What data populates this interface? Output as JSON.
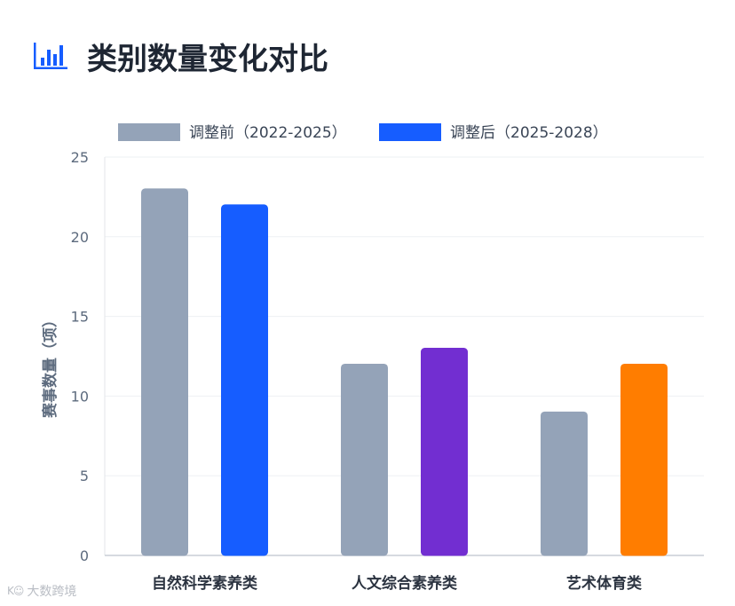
{
  "title": "类别数量变化对比",
  "icons": {
    "header": "bar-chart-icon"
  },
  "watermark": {
    "symbol": "K☺",
    "text": "大数跨境"
  },
  "chart_data": {
    "type": "bar",
    "title": "",
    "ylabel": "赛事数量（项）",
    "xlabel": "",
    "ylim": [
      0,
      25
    ],
    "yticks": [
      0,
      5,
      10,
      15,
      20,
      25
    ],
    "grid": true,
    "legend_position": "top",
    "categories": [
      "自然科学素养类",
      "人文综合素养类",
      "艺术体育类"
    ],
    "series": [
      {
        "name": "调整前（2022-2025）",
        "values": [
          23,
          12,
          9
        ],
        "color": "#94a3b8",
        "colors": [
          "#94a3b8",
          "#94a3b8",
          "#94a3b8"
        ]
      },
      {
        "name": "调整后（2025-2028）",
        "values": [
          22,
          13,
          12
        ],
        "color": "#165dff",
        "colors": [
          "#165dff",
          "#722ed1",
          "#ff7d00"
        ]
      }
    ]
  }
}
